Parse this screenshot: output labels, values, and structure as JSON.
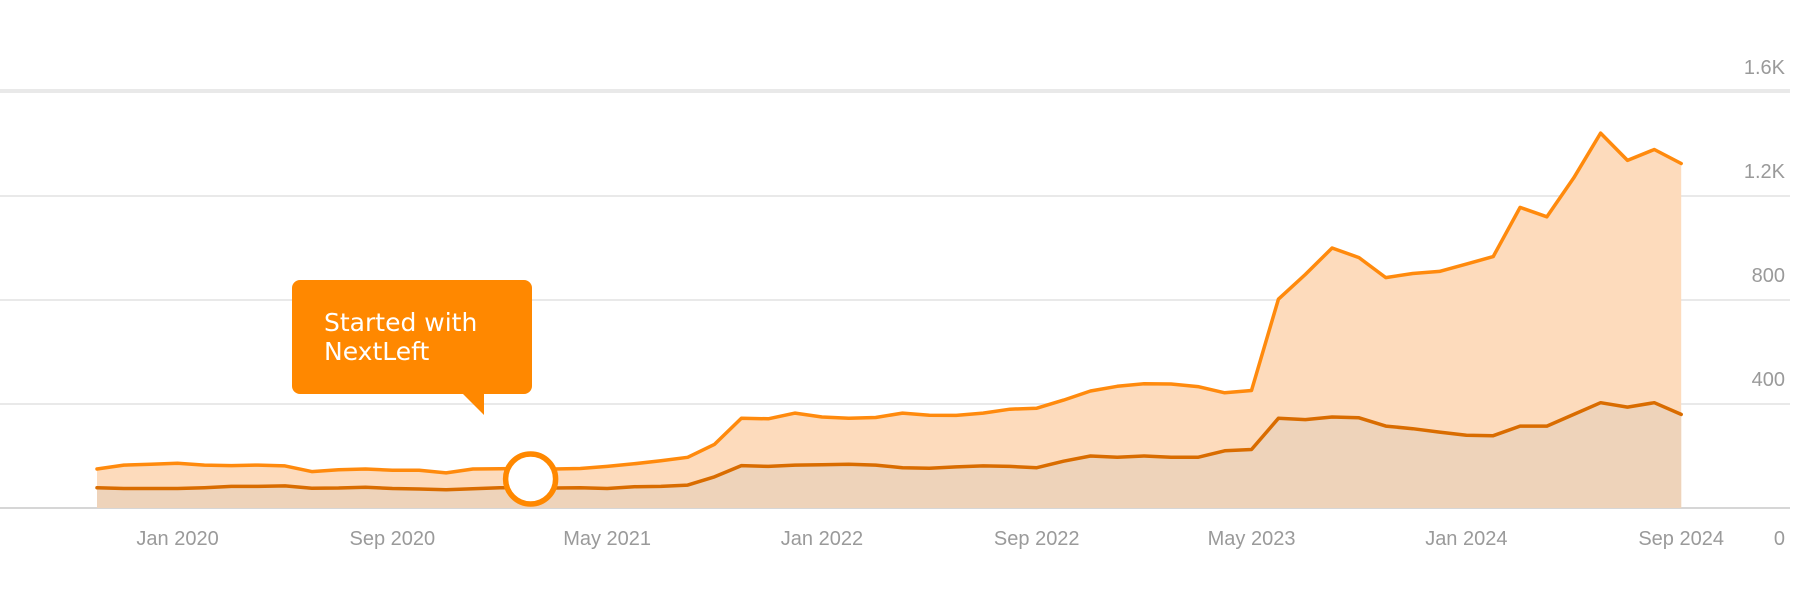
{
  "chart_data": {
    "type": "area",
    "title": "",
    "xlabel": "",
    "ylabel": "",
    "ylim": [
      0,
      1600
    ],
    "y_ticks": [
      "0",
      "400",
      "800",
      "1.2K",
      "1.6K"
    ],
    "y_tick_values": [
      0,
      400,
      800,
      1200,
      1600
    ],
    "x_ticks": [
      "Jan 2020",
      "Sep 2020",
      "May 2021",
      "Jan 2022",
      "Sep 2022",
      "May 2023",
      "Jan 2024",
      "Sep 2024"
    ],
    "x_tick_months": [
      3,
      11,
      19,
      27,
      35,
      43,
      51,
      59
    ],
    "grid": true,
    "y_axis_position": "right",
    "x": [
      "Oct 2019",
      "Nov 2019",
      "Dec 2019",
      "Jan 2020",
      "Feb 2020",
      "Mar 2020",
      "Apr 2020",
      "May 2020",
      "Jun 2020",
      "Jul 2020",
      "Aug 2020",
      "Sep 2020",
      "Oct 2020",
      "Nov 2020",
      "Dec 2020",
      "Jan 2021",
      "Feb 2021",
      "Mar 2021",
      "Apr 2021",
      "May 2021",
      "Jun 2021",
      "Jul 2021",
      "Aug 2021",
      "Sep 2021",
      "Oct 2021",
      "Nov 2021",
      "Dec 2021",
      "Jan 2022",
      "Feb 2022",
      "Mar 2022",
      "Apr 2022",
      "May 2022",
      "Jun 2022",
      "Jul 2022",
      "Aug 2022",
      "Sep 2022",
      "Oct 2022",
      "Nov 2022",
      "Dec 2022",
      "Jan 2023",
      "Feb 2023",
      "Mar 2023",
      "Apr 2023",
      "May 2023",
      "Jun 2023",
      "Jul 2023",
      "Aug 2023",
      "Sep 2023",
      "Oct 2023",
      "Nov 2023",
      "Dec 2023",
      "Jan 2024",
      "Feb 2024",
      "Mar 2024",
      "Apr 2024",
      "May 2024",
      "Jun 2024",
      "Jul 2024",
      "Aug 2024",
      "Sep 2024"
    ],
    "series": [
      {
        "color": "#ff8a0d",
        "fill": "#fddbbc",
        "values": [
          150,
          165,
          168,
          172,
          165,
          163,
          165,
          162,
          140,
          147,
          150,
          145,
          145,
          135,
          150,
          151,
          152,
          150,
          152,
          160,
          170,
          182,
          195,
          245,
          345,
          343,
          365,
          350,
          345,
          348,
          365,
          357,
          356,
          365,
          380,
          384,
          415,
          450,
          468,
          478,
          477,
          467,
          443,
          452,
          803,
          898,
          1000,
          963,
          886,
          902,
          910,
          938,
          967,
          1156,
          1120,
          1270,
          1442,
          1337,
          1379,
          1325
        ]
      },
      {
        "color": "#d96c00",
        "fill": "#eed3ba",
        "values": [
          78,
          75,
          75,
          75,
          78,
          83,
          83,
          85,
          76,
          77,
          80,
          75,
          73,
          70,
          74,
          78,
          78,
          77,
          78,
          75,
          82,
          83,
          88,
          120,
          163,
          160,
          165,
          166,
          168,
          165,
          155,
          153,
          158,
          162,
          160,
          155,
          180,
          200,
          195,
          200,
          195,
          195,
          220,
          225,
          345,
          340,
          350,
          347,
          315,
          305,
          292,
          280,
          278,
          315,
          315,
          360,
          405,
          388,
          405,
          360
        ]
      }
    ],
    "annotation": {
      "lines": [
        "Started with",
        "NextLeft"
      ],
      "month": "Feb 2021",
      "marker_value": 150,
      "color": "#ff8800"
    }
  }
}
